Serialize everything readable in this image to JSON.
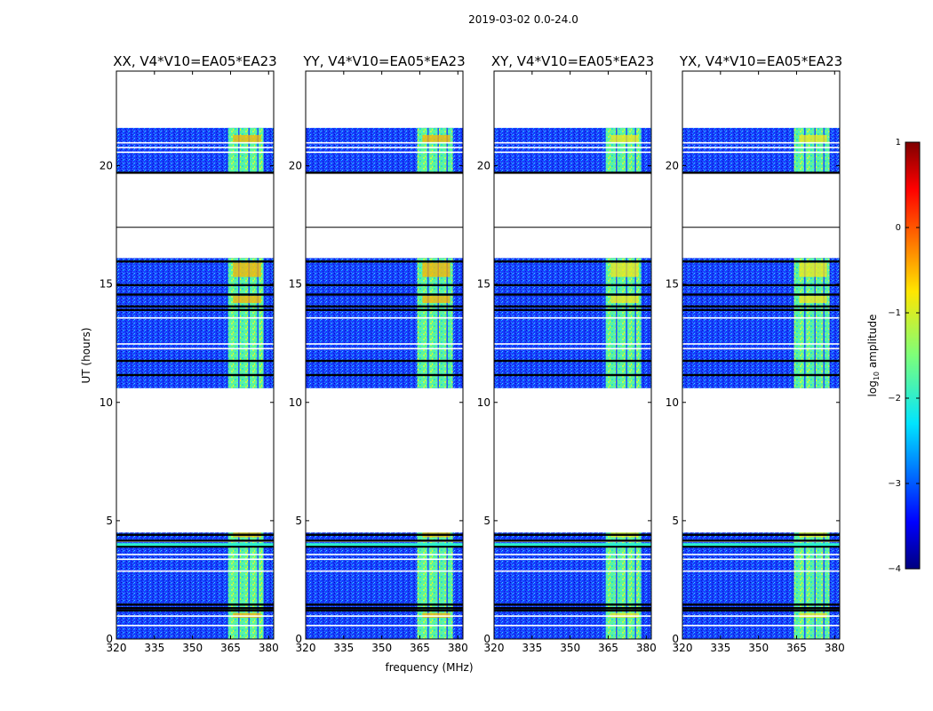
{
  "chart_data": {
    "type": "heatmap",
    "suptitle": "2019-03-02 0.0-24.0",
    "xlabel": "frequency (MHz)",
    "ylabel": "UT (hours)",
    "xlim": [
      320,
      382
    ],
    "ylim": [
      0,
      24
    ],
    "xticks": [
      320,
      335,
      350,
      365,
      380
    ],
    "yticks": [
      0,
      5,
      10,
      15,
      20
    ],
    "panels": [
      {
        "title": "XX, V4*V10=EA05*EA23",
        "pol": "XX"
      },
      {
        "title": "YY, V4*V10=EA05*EA23",
        "pol": "YY"
      },
      {
        "title": "XY, V4*V10=EA05*EA23",
        "pol": "XY"
      },
      {
        "title": "YX, V4*V10=EA05*EA23",
        "pol": "YX"
      }
    ],
    "data_blocks_ut": [
      {
        "start": 0.0,
        "end": 4.5
      },
      {
        "start": 10.6,
        "end": 16.1
      },
      {
        "start": 19.7,
        "end": 21.6
      }
    ],
    "reference_line_ut": 17.4,
    "rfi_band_mhz": [
      364,
      378
    ],
    "colorbar": {
      "label": "log10 amplitude",
      "label_main": "log",
      "label_sub": "10",
      "label_rest": " amplitude",
      "range": [
        -4,
        1
      ],
      "ticks": [
        {
          "value": 1,
          "label": "1"
        },
        {
          "value": 0,
          "label": "0"
        },
        {
          "value": -1,
          "label": "−1"
        },
        {
          "value": -2,
          "label": "−2"
        },
        {
          "value": -3,
          "label": "−3"
        },
        {
          "value": -4,
          "label": "−4"
        }
      ],
      "colormap": "jet"
    }
  }
}
